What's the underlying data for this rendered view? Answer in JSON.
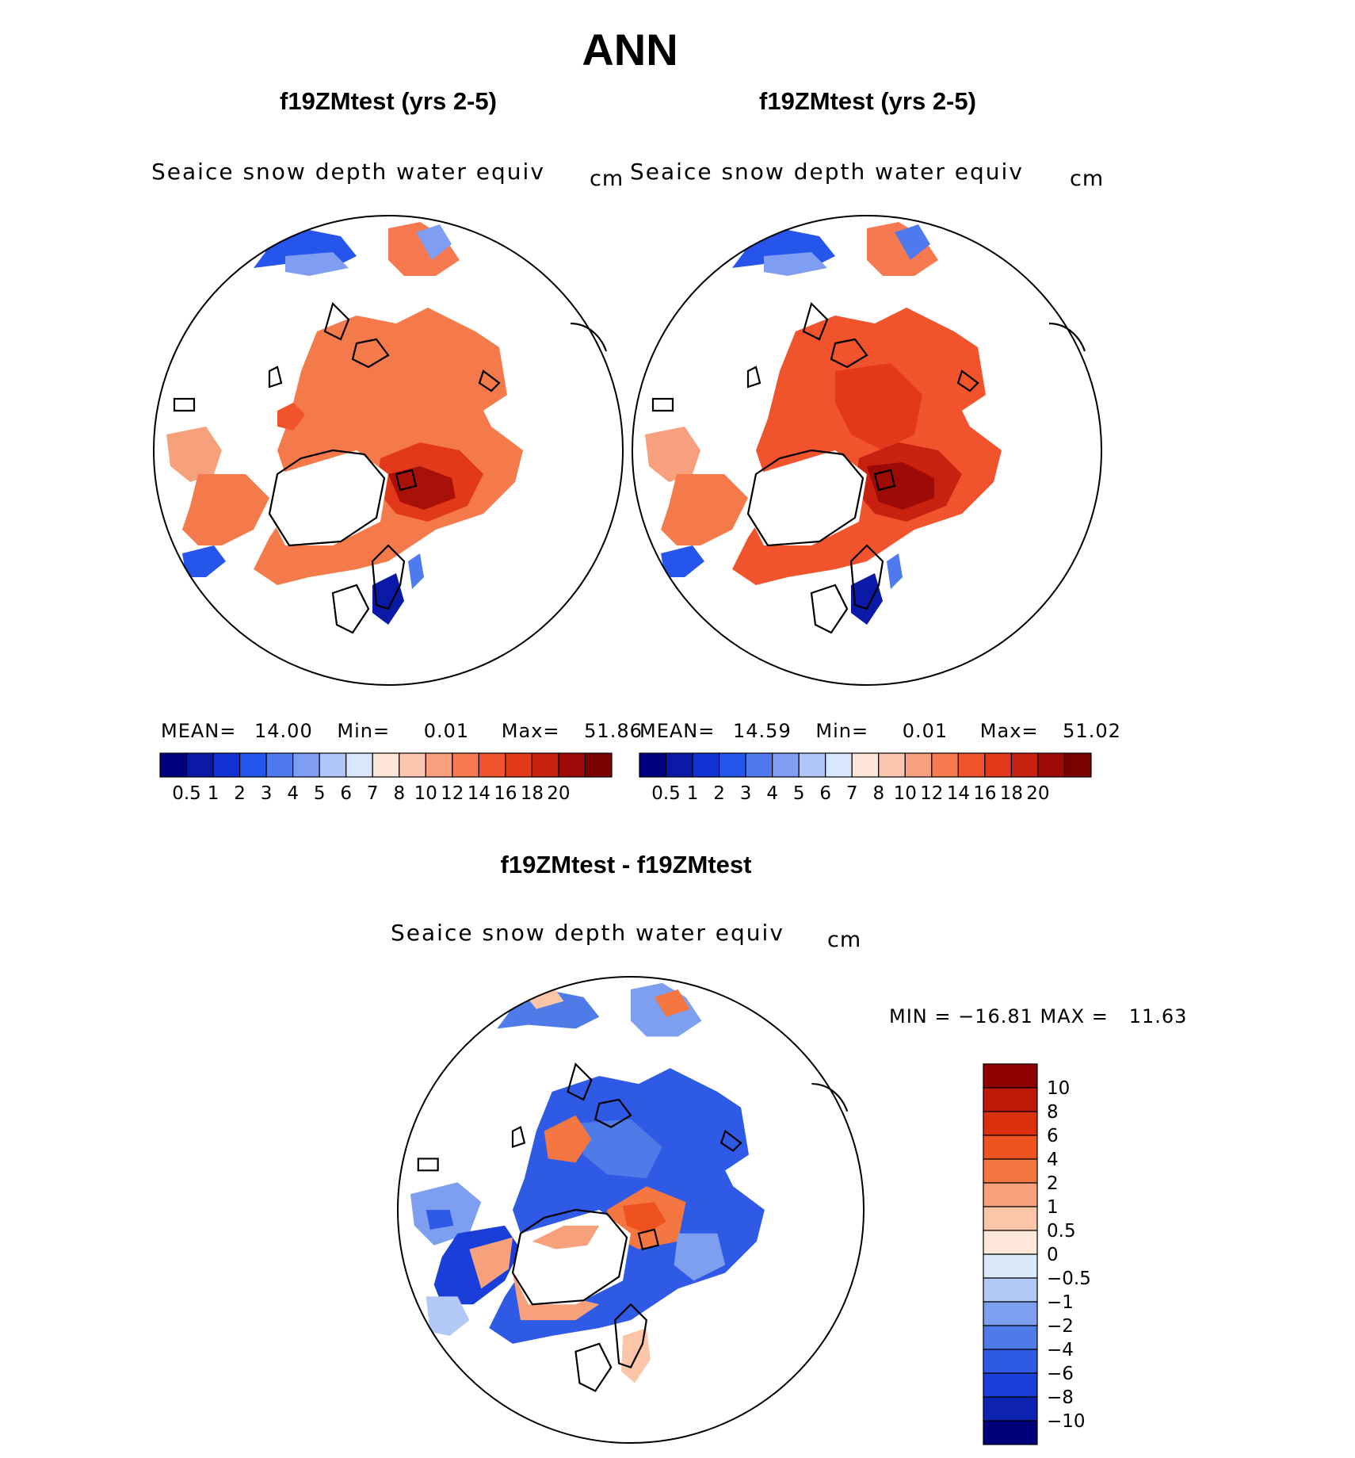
{
  "title": "ANN",
  "colors": {
    "seq_palette": [
      "#000080",
      "#0a1aa6",
      "#1232d4",
      "#2655ec",
      "#4f7aee",
      "#7f9ef3",
      "#b0c6f8",
      "#d8e7fb",
      "#fde6d8",
      "#fbc6ad",
      "#f8a07d",
      "#f6794f",
      "#f1532c",
      "#e3391b",
      "#c8210f",
      "#9e0a05",
      "#7b0000"
    ],
    "diff_palette": [
      "#00007a",
      "#0e22b0",
      "#1a3fd8",
      "#2f5ae6",
      "#4f7be8",
      "#7e9ff0",
      "#b2c8f6",
      "#d9e9fa",
      "#fde8da",
      "#fbc5a8",
      "#f6a07c",
      "#f47640",
      "#ee521f",
      "#db300e",
      "#bd1a08",
      "#8e0000"
    ],
    "land_outline": "#000000"
  },
  "panels": [
    {
      "title": "f19ZMtest (yrs 2-5)",
      "variable": "Seaice snow depth water equiv",
      "units": "cm",
      "mean_label": "MEAN=",
      "mean_value": "14.00",
      "min_label": "Min=",
      "min_value": "0.01",
      "max_label": "Max=",
      "max_value": "51.86"
    },
    {
      "title": "f19ZMtest (yrs 2-5)",
      "variable": "Seaice snow depth water equiv",
      "units": "cm",
      "mean_label": "MEAN=",
      "mean_value": "14.59",
      "min_label": "Min=",
      "min_value": "0.01",
      "max_label": "Max=",
      "max_value": "51.02"
    }
  ],
  "diff": {
    "title": "f19ZMtest - f19ZMtest",
    "variable": "Seaice snow depth water equiv",
    "units": "cm",
    "minmax": "MIN = −16.81 MAX =   11.63"
  },
  "chart_data": [
    {
      "type": "heatmap",
      "title": "f19ZMtest (yrs 2-5)",
      "projection": "north polar stereographic",
      "variable": "Seaice snow depth water equiv",
      "units": "cm",
      "stats": {
        "mean": 14.0,
        "min": 0.01,
        "max": 51.86
      },
      "colorbar_levels": [
        "0.5",
        "1",
        "2",
        "3",
        "4",
        "5",
        "6",
        "7",
        "8",
        "10",
        "12",
        "14",
        "16",
        "18",
        "20"
      ]
    },
    {
      "type": "heatmap",
      "title": "f19ZMtest (yrs 2-5)",
      "projection": "north polar stereographic",
      "variable": "Seaice snow depth water equiv",
      "units": "cm",
      "stats": {
        "mean": 14.59,
        "min": 0.01,
        "max": 51.02
      },
      "colorbar_levels": [
        "0.5",
        "1",
        "2",
        "3",
        "4",
        "5",
        "6",
        "7",
        "8",
        "10",
        "12",
        "14",
        "16",
        "18",
        "20"
      ]
    },
    {
      "type": "heatmap",
      "title": "f19ZMtest - f19ZMtest",
      "projection": "north polar stereographic",
      "variable": "Seaice snow depth water equiv",
      "units": "cm",
      "stats": {
        "min": -16.81,
        "max": 11.63
      },
      "colorbar_levels": [
        "10",
        "8",
        "6",
        "4",
        "2",
        "1",
        "0.5",
        "0",
        "−0.5",
        "−1",
        "−2",
        "−4",
        "−6",
        "−8",
        "−10"
      ]
    }
  ]
}
